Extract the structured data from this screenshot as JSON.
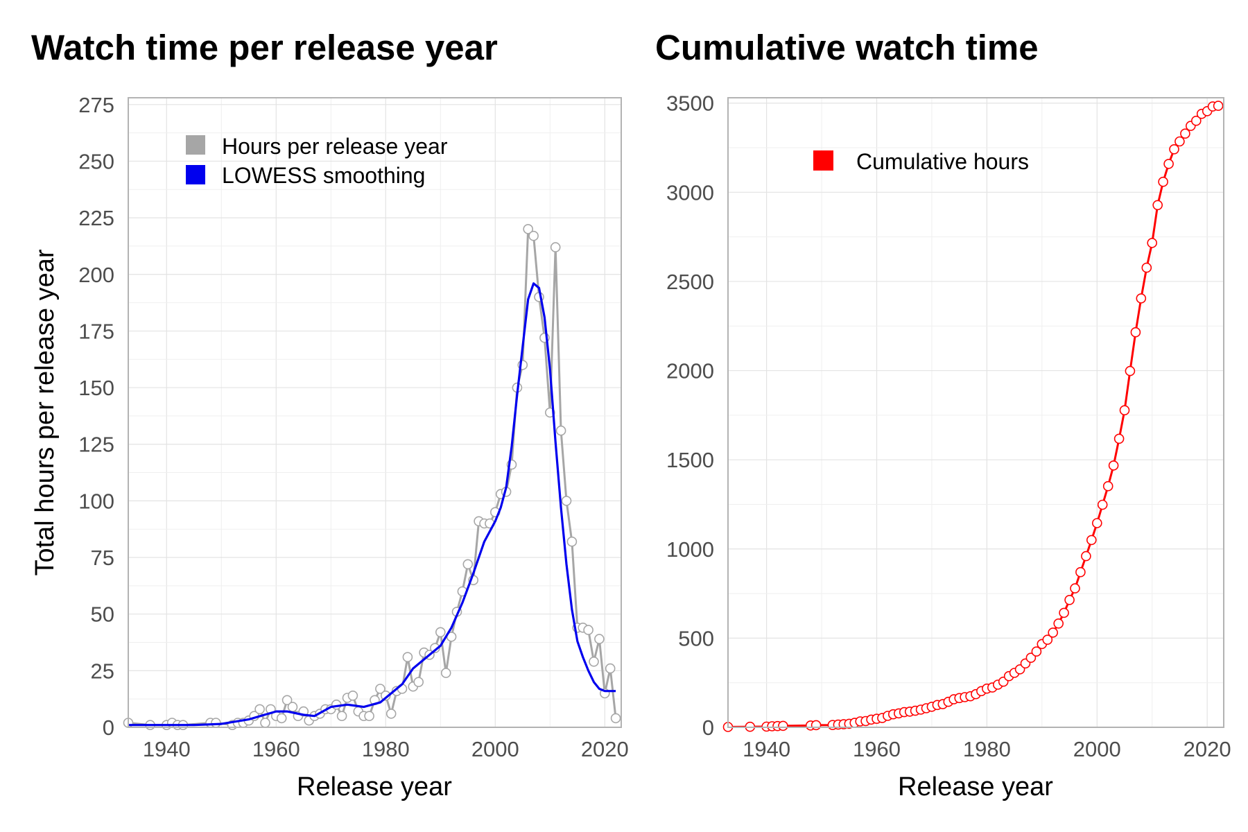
{
  "chart_data": [
    {
      "type": "line",
      "title": "Watch time per release year",
      "xlabel": "Release year",
      "ylabel": "Total hours per release year",
      "xlim": [
        1933,
        2023
      ],
      "ylim": [
        0,
        278
      ],
      "x_ticks": [
        1940,
        1960,
        1980,
        2000,
        2020
      ],
      "y_ticks": [
        0,
        25,
        50,
        75,
        100,
        125,
        150,
        175,
        200,
        225,
        250,
        275
      ],
      "grid": true,
      "legend_position": "top-left",
      "series": [
        {
          "name": "Hours per release year",
          "color": "#a6a6a6",
          "marker": "open-circle",
          "x": [
            1933,
            1937,
            1940,
            1941,
            1942,
            1943,
            1948,
            1949,
            1952,
            1953,
            1954,
            1955,
            1956,
            1957,
            1958,
            1959,
            1960,
            1961,
            1962,
            1963,
            1964,
            1965,
            1966,
            1967,
            1968,
            1969,
            1970,
            1971,
            1972,
            1973,
            1974,
            1975,
            1976,
            1977,
            1978,
            1979,
            1980,
            1981,
            1982,
            1983,
            1984,
            1985,
            1986,
            1987,
            1988,
            1989,
            1990,
            1991,
            1992,
            1993,
            1994,
            1995,
            1996,
            1997,
            1998,
            1999,
            2000,
            2001,
            2002,
            2003,
            2004,
            2005,
            2006,
            2007,
            2008,
            2009,
            2010,
            2011,
            2012,
            2013,
            2014,
            2015,
            2016,
            2017,
            2018,
            2019,
            2020,
            2021,
            2022
          ],
          "y": [
            2,
            1,
            1,
            2,
            1,
            1,
            2,
            2,
            1,
            2,
            2,
            3,
            5,
            8,
            2,
            8,
            5,
            4,
            12,
            9,
            5,
            7,
            3,
            5,
            6,
            8,
            8,
            10,
            5,
            13,
            14,
            7,
            5,
            5,
            12,
            17,
            14,
            6,
            16,
            17,
            31,
            18,
            20,
            33,
            32,
            35,
            42,
            24,
            40,
            51,
            60,
            72,
            65,
            91,
            90,
            90,
            95,
            103,
            104,
            116,
            150,
            160,
            220,
            217,
            190,
            172,
            139,
            212,
            131,
            100,
            82,
            44,
            44,
            43,
            29,
            39,
            15,
            26,
            4
          ]
        },
        {
          "name": "LOWESS smoothing",
          "color": "#0000ee",
          "x": [
            1933,
            1940,
            1945,
            1950,
            1955,
            1960,
            1962,
            1965,
            1967,
            1970,
            1973,
            1976,
            1979,
            1981,
            1983,
            1985,
            1987,
            1990,
            1992,
            1994,
            1996,
            1998,
            2000,
            2001,
            2002,
            2003,
            2004,
            2005,
            2006,
            2007,
            2008,
            2009,
            2010,
            2011,
            2012,
            2013,
            2014,
            2015,
            2016,
            2017,
            2018,
            2019,
            2020,
            2021,
            2022
          ],
          "y": [
            1,
            1,
            1,
            1.5,
            3.5,
            7,
            7,
            5.5,
            5,
            9,
            10,
            9,
            11,
            15,
            19,
            26,
            30,
            36,
            44,
            55,
            68,
            82,
            91,
            97,
            106,
            124,
            147,
            168,
            189,
            196,
            194,
            181,
            158,
            126,
            97,
            72,
            52,
            38,
            31,
            25,
            20,
            17,
            16,
            16,
            16
          ]
        }
      ]
    },
    {
      "type": "line",
      "title": "Cumulative watch time",
      "xlabel": "Release year",
      "ylabel": "",
      "xlim": [
        1933,
        2023
      ],
      "ylim": [
        0,
        3530
      ],
      "x_ticks": [
        1940,
        1960,
        1980,
        2000,
        2020
      ],
      "y_ticks": [
        0,
        500,
        1000,
        1500,
        2000,
        2500,
        3000,
        3500
      ],
      "grid": true,
      "legend_position": "top-center",
      "series": [
        {
          "name": "Cumulative hours",
          "color": "#ff0000",
          "marker": "open-circle",
          "x": [
            1933,
            1937,
            1940,
            1941,
            1942,
            1943,
            1948,
            1949,
            1952,
            1953,
            1954,
            1955,
            1956,
            1957,
            1958,
            1959,
            1960,
            1961,
            1962,
            1963,
            1964,
            1965,
            1966,
            1967,
            1968,
            1969,
            1970,
            1971,
            1972,
            1973,
            1974,
            1975,
            1976,
            1977,
            1978,
            1979,
            1980,
            1981,
            1982,
            1983,
            1984,
            1985,
            1986,
            1987,
            1988,
            1989,
            1990,
            1991,
            1992,
            1993,
            1994,
            1995,
            1996,
            1997,
            1998,
            1999,
            2000,
            2001,
            2002,
            2003,
            2004,
            2005,
            2006,
            2007,
            2008,
            2009,
            2010,
            2011,
            2012,
            2013,
            2014,
            2015,
            2016,
            2017,
            2018,
            2019,
            2020,
            2021,
            2022
          ],
          "y": [
            2,
            3,
            4,
            6,
            7,
            8,
            10,
            12,
            13,
            15,
            17,
            20,
            25,
            33,
            35,
            43,
            48,
            52,
            64,
            73,
            78,
            85,
            88,
            93,
            99,
            107,
            115,
            125,
            130,
            143,
            157,
            164,
            169,
            174,
            186,
            203,
            217,
            223,
            239,
            256,
            287,
            305,
            325,
            358,
            390,
            425,
            467,
            491,
            531,
            582,
            642,
            714,
            779,
            870,
            960,
            1050,
            1145,
            1248,
            1352,
            1468,
            1618,
            1778,
            1998,
            2215,
            2405,
            2577,
            2716,
            2928,
            3059,
            3159,
            3241,
            3285,
            3329,
            3372,
            3401,
            3440,
            3455,
            3481,
            3485
          ]
        }
      ]
    }
  ]
}
